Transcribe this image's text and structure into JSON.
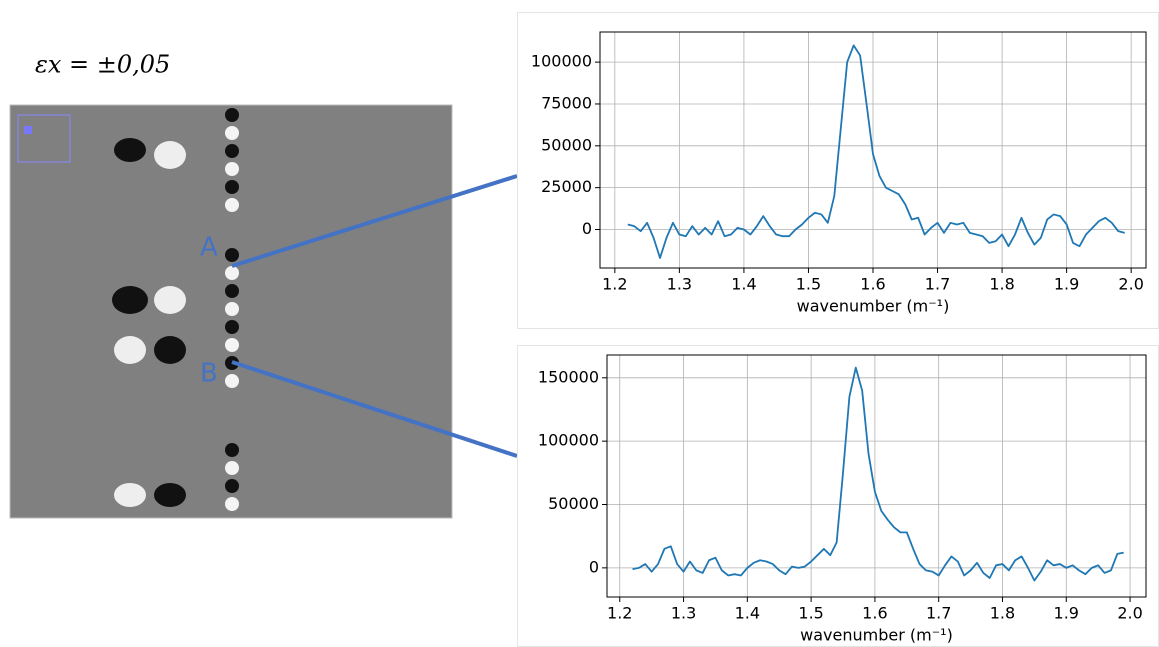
{
  "figure": {
    "strain_label": "εx = ±0,05",
    "points": [
      "A",
      "B"
    ]
  },
  "chart_data": [
    {
      "type": "line",
      "xlabel": "wavenumber (m⁻¹)",
      "x": [
        1.22,
        1.23,
        1.24,
        1.25,
        1.26,
        1.27,
        1.28,
        1.29,
        1.3,
        1.31,
        1.32,
        1.33,
        1.34,
        1.35,
        1.36,
        1.37,
        1.38,
        1.39,
        1.4,
        1.41,
        1.42,
        1.43,
        1.44,
        1.45,
        1.46,
        1.47,
        1.48,
        1.49,
        1.5,
        1.51,
        1.52,
        1.53,
        1.54,
        1.55,
        1.56,
        1.57,
        1.58,
        1.59,
        1.6,
        1.61,
        1.62,
        1.63,
        1.64,
        1.65,
        1.66,
        1.67,
        1.68,
        1.69,
        1.7,
        1.71,
        1.72,
        1.73,
        1.74,
        1.75,
        1.76,
        1.77,
        1.78,
        1.79,
        1.8,
        1.81,
        1.82,
        1.83,
        1.84,
        1.85,
        1.86,
        1.87,
        1.88,
        1.89,
        1.9,
        1.91,
        1.92,
        1.93,
        1.94,
        1.95,
        1.96,
        1.97,
        1.98,
        1.99
      ],
      "series": [
        {
          "color": "#1f77b4",
          "values": [
            3000,
            2000,
            -1000,
            4000,
            -5000,
            -17000,
            -5000,
            4000,
            -3000,
            -4000,
            2000,
            -3000,
            1000,
            -3000,
            5000,
            -4000,
            -3000,
            1000,
            0,
            -3000,
            2000,
            8000,
            2000,
            -3000,
            -4000,
            -4000,
            0,
            3000,
            7000,
            10000,
            9000,
            4000,
            20000,
            60000,
            100000,
            110000,
            104000,
            75000,
            45000,
            32000,
            25000,
            23000,
            21000,
            15000,
            6000,
            7000,
            -3000,
            1000,
            4000,
            -2000,
            4000,
            3000,
            4000,
            -2000,
            -3000,
            -4000,
            -8000,
            -7000,
            -3000,
            -10000,
            -3000,
            7000,
            -2000,
            -9000,
            -5000,
            6000,
            9000,
            8000,
            3000,
            -8000,
            -10000,
            -3000,
            1000,
            5000,
            7000,
            4000,
            -1000,
            -2000
          ]
        }
      ],
      "xlim": [
        1.177,
        2.023
      ],
      "ylim": [
        -23000,
        118000
      ],
      "xticks": [
        1.2,
        1.3,
        1.4,
        1.5,
        1.6,
        1.7,
        1.8,
        1.9,
        {
          "value": 2,
          "label": "2.0"
        }
      ],
      "yticks": [
        0,
        25000,
        50000,
        75000,
        100000
      ],
      "grid": true
    },
    {
      "type": "line",
      "xlabel": "wavenumber (m⁻¹)",
      "x": [
        1.22,
        1.23,
        1.24,
        1.25,
        1.26,
        1.27,
        1.28,
        1.29,
        1.3,
        1.31,
        1.32,
        1.33,
        1.34,
        1.35,
        1.36,
        1.37,
        1.38,
        1.39,
        1.4,
        1.41,
        1.42,
        1.43,
        1.44,
        1.45,
        1.46,
        1.47,
        1.48,
        1.49,
        1.5,
        1.51,
        1.52,
        1.53,
        1.54,
        1.55,
        1.56,
        1.57,
        1.58,
        1.59,
        1.6,
        1.61,
        1.62,
        1.63,
        1.64,
        1.65,
        1.66,
        1.67,
        1.68,
        1.69,
        1.7,
        1.71,
        1.72,
        1.73,
        1.74,
        1.75,
        1.76,
        1.77,
        1.78,
        1.79,
        1.8,
        1.81,
        1.82,
        1.83,
        1.84,
        1.85,
        1.86,
        1.87,
        1.88,
        1.89,
        1.9,
        1.91,
        1.92,
        1.93,
        1.94,
        1.95,
        1.96,
        1.97,
        1.98,
        1.99
      ],
      "series": [
        {
          "color": "#1f77b4",
          "values": [
            -1000,
            0,
            3000,
            -3000,
            3000,
            15000,
            17000,
            3000,
            -3000,
            5000,
            -2000,
            -4000,
            6000,
            8000,
            -2000,
            -6000,
            -5000,
            -6000,
            0,
            4000,
            6000,
            5000,
            3000,
            -2000,
            -5000,
            1000,
            0,
            1000,
            5000,
            10000,
            15000,
            10000,
            20000,
            75000,
            135000,
            158000,
            140000,
            90000,
            60000,
            45000,
            38000,
            32000,
            28000,
            28000,
            15000,
            3000,
            -2000,
            -3000,
            -6000,
            2000,
            9000,
            5000,
            -6000,
            -2000,
            4000,
            -4000,
            -8000,
            2000,
            3000,
            -2000,
            6000,
            9000,
            0,
            -10000,
            -3000,
            6000,
            2000,
            3000,
            0,
            2000,
            -2000,
            -5000,
            0,
            2000,
            -4000,
            -2000,
            11000,
            12000
          ]
        }
      ],
      "xlim": [
        1.18,
        2.025
      ],
      "ylim": [
        -23000,
        168000
      ],
      "xticks": [
        1.2,
        1.3,
        1.4,
        1.5,
        1.6,
        1.7,
        1.8,
        1.9,
        {
          "value": 2,
          "label": "2.0"
        }
      ],
      "yticks": [
        0,
        50000,
        100000,
        150000
      ],
      "grid": true
    }
  ]
}
